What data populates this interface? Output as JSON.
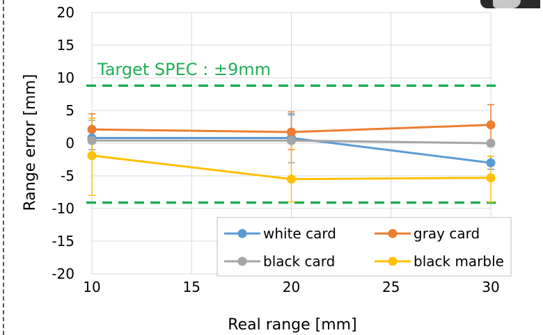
{
  "chart_data": {
    "type": "line",
    "xlabel": "Real range [mm]",
    "ylabel": "Range error [mm]",
    "xlim": [
      10,
      30
    ],
    "ylim": [
      -20,
      20
    ],
    "x_ticks": [
      10,
      15,
      20,
      25,
      30
    ],
    "y_ticks": [
      20,
      15,
      10,
      5,
      0,
      -5,
      -10,
      -15,
      -20
    ],
    "grid": true,
    "legend_position": "bottom-right",
    "spec_label": "Target SPEC : ±9mm",
    "spec_limits": [
      8.8,
      -9.1
    ],
    "spec_color": "#1fae55",
    "x": [
      10,
      20,
      30
    ],
    "series": [
      {
        "name": "white card",
        "color": "#5b9bd5",
        "values": [
          0.8,
          0.8,
          -3.0
        ],
        "error_low": [
          0.0,
          -3.0,
          -4.0
        ],
        "error_high": [
          2.0,
          4.5,
          -2.0
        ]
      },
      {
        "name": "gray card",
        "color": "#ed7d31",
        "values": [
          2.1,
          1.7,
          2.8
        ],
        "error_low": [
          -1.0,
          -1.0,
          -0.5
        ],
        "error_high": [
          4.5,
          4.8,
          5.9
        ]
      },
      {
        "name": "black card",
        "color": "#a5a5a5",
        "values": [
          0.4,
          0.4,
          0.0
        ],
        "error_low": [
          -1.0,
          -3.0,
          -0.5
        ],
        "error_high": [
          3.5,
          4.3,
          0.3
        ]
      },
      {
        "name": "black marble",
        "color": "#ffc000",
        "values": [
          -1.9,
          -5.5,
          -5.3
        ],
        "error_low": [
          -8.0,
          -9.0,
          -9.0
        ],
        "error_high": [
          3.8,
          1.5,
          -2.0
        ]
      }
    ]
  }
}
